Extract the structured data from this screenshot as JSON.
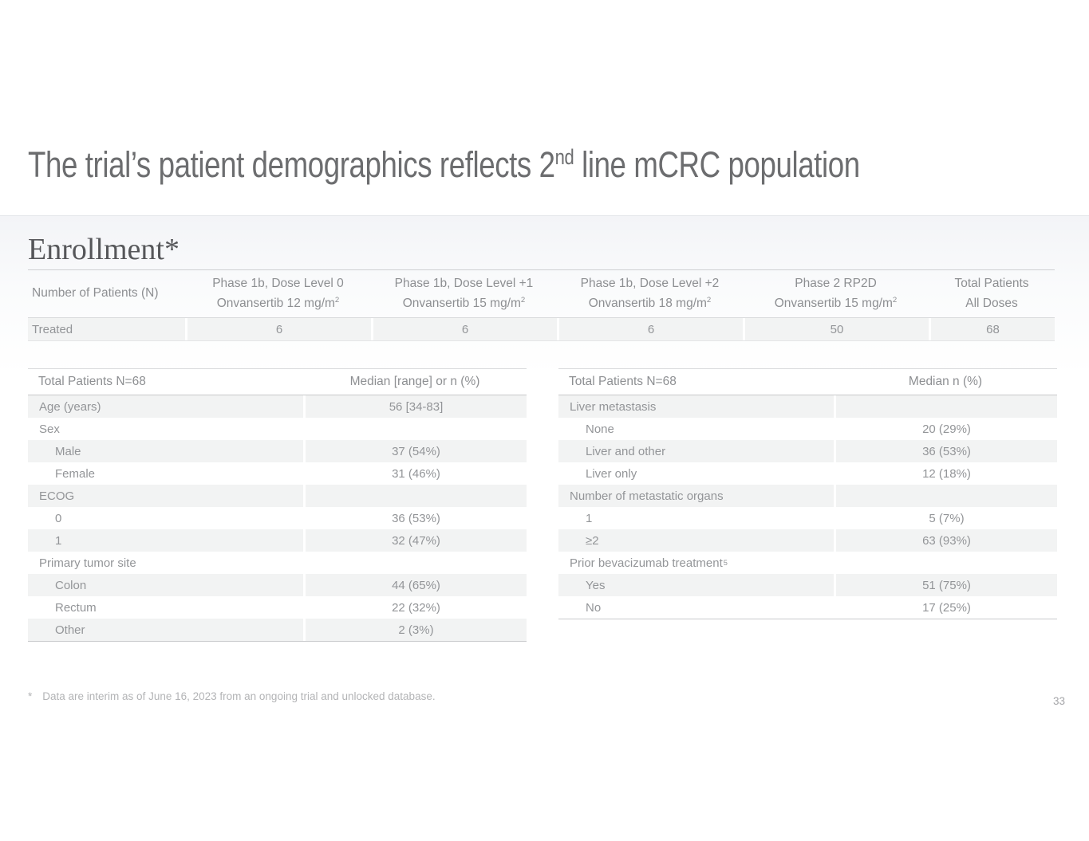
{
  "slide": {
    "title": {
      "pre": "The trial’s patient demographics reflects 2",
      "sup": "nd",
      "post": " line mCRC population"
    },
    "footnote": {
      "marker": "*",
      "text": "Data are interim as of June 16, 2023 from an ongoing trial and unlocked database."
    },
    "page_number": "33"
  },
  "colors": {
    "row_shade": "#f2f3f3",
    "rule_dark": "#c9cacc",
    "rule_light": "#e4e5e7",
    "text_title": "#6c6d6f",
    "text_heading": "#56575a",
    "text_table": "#939598",
    "text_footnote": "#b3b4b6",
    "band_tint": "#f3f4f7"
  },
  "enrollment": {
    "heading": "Enrollment*",
    "row_header": "Number of Patients (N)",
    "columns": [
      {
        "line1": "Phase 1b, Dose Level 0",
        "line2": "Onvansertib 12 mg/m",
        "sup": "2"
      },
      {
        "line1": "Phase 1b, Dose Level +1",
        "line2": "Onvansertib 15 mg/m",
        "sup": "2"
      },
      {
        "line1": "Phase 1b, Dose Level +2",
        "line2": "Onvansertib 18 mg/m",
        "sup": "2"
      },
      {
        "line1": "Phase 2 RP2D",
        "line2": "Onvansertib 15 mg/m",
        "sup": "2"
      },
      {
        "line1": "Total Patients",
        "line2": "All Doses",
        "sup": ""
      }
    ],
    "treated": {
      "label": "Treated",
      "values": [
        "6",
        "6",
        "6",
        "50",
        "68"
      ]
    }
  },
  "demo_left": {
    "header": {
      "label": "Total Patients N=68",
      "value": "Median [range] or n (%)"
    },
    "rows": [
      {
        "label": "Age (years)",
        "value": "56 [34-83]"
      },
      {
        "label": "Sex",
        "value": ""
      },
      {
        "label": "Male",
        "value": "37 (54%)"
      },
      {
        "label": "Female",
        "value": "31 (46%)"
      },
      {
        "label": "ECOG",
        "value": ""
      },
      {
        "label": "0",
        "value": "36 (53%)"
      },
      {
        "label": "1",
        "value": "32 (47%)"
      },
      {
        "label": "Primary tumor site",
        "value": ""
      },
      {
        "label": "Colon",
        "value": "44 (65%)"
      },
      {
        "label": "Rectum",
        "value": "22 (32%)"
      },
      {
        "label": "Other",
        "value": "2 (3%)"
      }
    ]
  },
  "demo_right": {
    "header": {
      "label": "Total Patients N=68",
      "value": "Median n (%)"
    },
    "rows": [
      {
        "label": "Liver metastasis",
        "value": ""
      },
      {
        "label": "None",
        "value": "20 (29%)"
      },
      {
        "label": "Liver and other",
        "value": "36 (53%)"
      },
      {
        "label": "Liver only",
        "value": "12 (18%)"
      },
      {
        "label": "Number of metastatic organs",
        "value": ""
      },
      {
        "label": "1",
        "value": "5 (7%)"
      },
      {
        "label": "≥2",
        "value": "63 (93%)"
      },
      {
        "label": "Prior bevacizumab treatment",
        "label_sup": "5",
        "value": ""
      },
      {
        "label": "Yes",
        "value": "51 (75%)"
      },
      {
        "label": "No",
        "value": "17 (25%)"
      }
    ]
  }
}
